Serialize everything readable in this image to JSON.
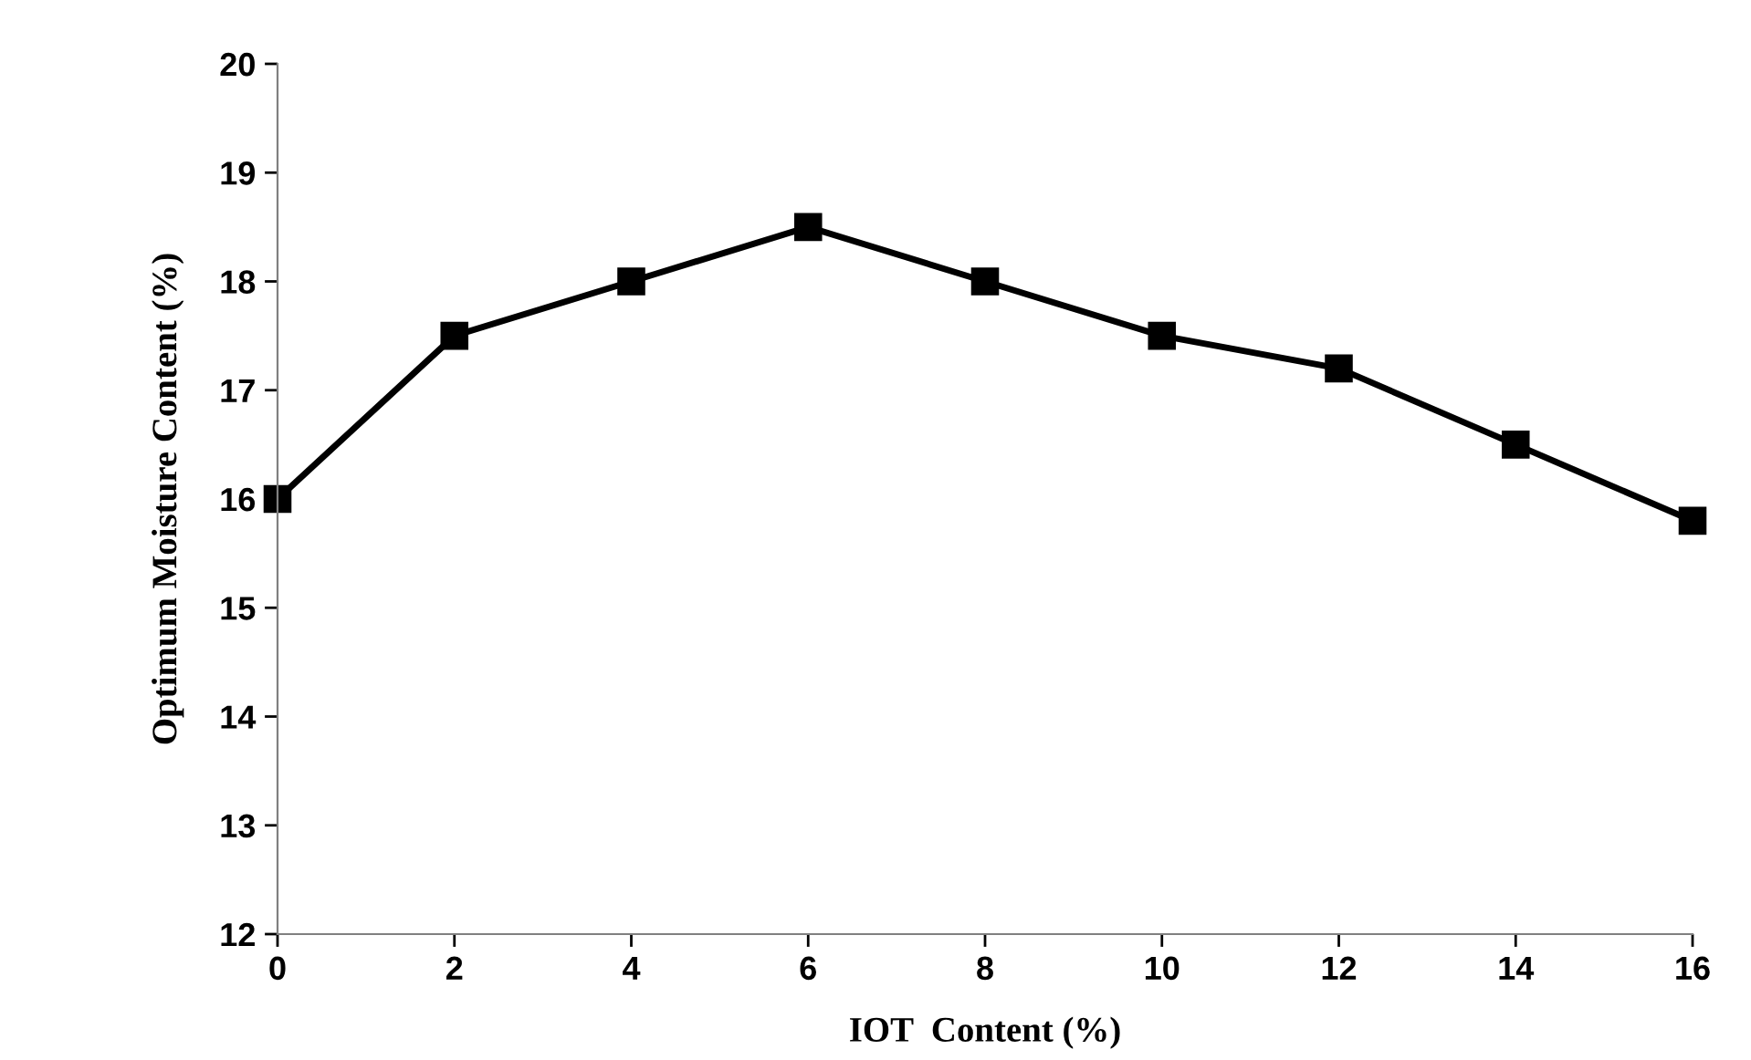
{
  "chart_data": {
    "type": "line",
    "xlabel": "IOT  Content (%)",
    "ylabel": "Optimum Moisture Content (%)",
    "x": [
      0,
      2,
      4,
      6,
      8,
      10,
      12,
      14,
      16
    ],
    "series": [
      {
        "color": "#000000",
        "values": [
          16,
          17.5,
          18,
          18.5,
          18,
          17.5,
          17.2,
          16.5,
          15.8
        ]
      }
    ],
    "xlim": [
      0,
      16
    ],
    "xticks": [
      0,
      2,
      4,
      6,
      8,
      10,
      12,
      14,
      16
    ],
    "ylim": [
      12,
      20
    ],
    "yticks": [
      12,
      13,
      14,
      15,
      16,
      17,
      18,
      19,
      20
    ],
    "marker": "square",
    "line_style": "solid",
    "grid": false,
    "legend": false
  }
}
